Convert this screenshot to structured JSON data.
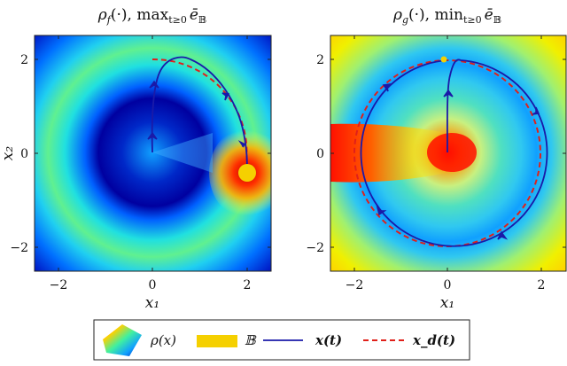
{
  "chart_data": [
    {
      "type": "heatmap",
      "panel": "left",
      "title": "ρ_f(·), max_{t≥0} ē_𝔹",
      "title_main": "ρ",
      "title_sub": "f",
      "title_rest": "(·),  max",
      "title_op_sub": "t≥0",
      "title_tail": "ē",
      "title_tail_sub": "𝔹",
      "xlabel": "x₁",
      "ylabel": "x₂",
      "xlim": [
        -2.5,
        2.5
      ],
      "ylim": [
        -2.5,
        2.5
      ],
      "xticks": [
        "−2",
        "0",
        "2"
      ],
      "yticks": [
        "2",
        "0",
        "−2"
      ],
      "colormap": "jet",
      "ball_B": {
        "center": [
          2.0,
          -0.45
        ],
        "radius": 0.2,
        "color": "#f5d000"
      },
      "trajectory_x": "spiral from origin up to ~(0.3, 2.0) then clockwise to (2.0, -0.45)",
      "trajectory_xd": "circle radius 2 arc from (0, 2) to (2.0, -0.45)"
    },
    {
      "type": "heatmap",
      "panel": "right",
      "title": "ρ_g(·), min_{t≥0} ē_𝔹",
      "title_main": "ρ",
      "title_sub": "g",
      "title_rest": "(·),  min",
      "title_op_sub": "t≥0",
      "title_tail": "ē",
      "title_tail_sub": "𝔹",
      "xlabel": "x₁",
      "xlim": [
        -2.5,
        2.5
      ],
      "ylim": [
        -2.5,
        2.5
      ],
      "xticks": [
        "−2",
        "0",
        "2"
      ],
      "yticks": [
        "2",
        "0",
        "−2"
      ],
      "colormap": "jet",
      "ball_B": {
        "center": [
          -0.05,
          2.0
        ],
        "radius": 0.06,
        "color": "#f5d000"
      },
      "trajectory_x": "from origin up to (0, 2) then full circle radius 2",
      "trajectory_xd": "circle radius 2"
    }
  ],
  "legend": {
    "rho": "ρ(x)",
    "ball": "𝔹",
    "x_t": "x(t)",
    "xd_t": "x_d(t)"
  },
  "colors": {
    "x_line": "#1a1aa8",
    "xd_line": "#e0201a",
    "ball": "#f5d000"
  }
}
